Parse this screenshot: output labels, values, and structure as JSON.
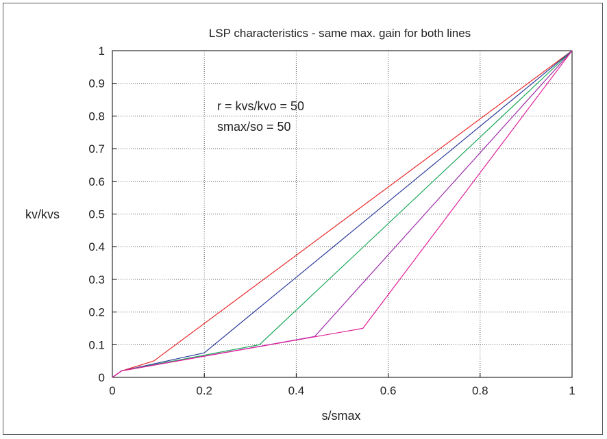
{
  "chart_data": {
    "type": "line",
    "title": "LSP characteristics - same max. gain for both lines",
    "xlabel": "s/smax",
    "ylabel": "kv/kvs",
    "xlim": [
      0,
      1
    ],
    "ylim": [
      0,
      1
    ],
    "grid": true,
    "xticks": [
      "0",
      "0.2",
      "0.4",
      "0.6",
      "0.8",
      "1"
    ],
    "yticks": [
      "0",
      "0.1",
      "0.2",
      "0.3",
      "0.4",
      "0.5",
      "0.6",
      "0.7",
      "0.8",
      "0.9",
      "1"
    ],
    "annotations": [
      "r = kvs/kvo = 50",
      "smax/so = 50"
    ],
    "series": [
      {
        "color": "#e8282a",
        "x": [
          0,
          0.02,
          0.09,
          1
        ],
        "y": [
          0,
          0.02,
          0.05,
          1
        ]
      },
      {
        "color": "#2a3a9a",
        "x": [
          0,
          0.02,
          0.2,
          1
        ],
        "y": [
          0,
          0.02,
          0.075,
          1
        ]
      },
      {
        "color": "#1aa85a",
        "x": [
          0,
          0.02,
          0.32,
          1
        ],
        "y": [
          0,
          0.02,
          0.1,
          1
        ]
      },
      {
        "color": "#9a2aa8",
        "x": [
          0,
          0.02,
          0.44,
          1
        ],
        "y": [
          0,
          0.02,
          0.125,
          1
        ]
      },
      {
        "color": "#e0209a",
        "x": [
          0,
          0.02,
          0.545,
          1
        ],
        "y": [
          0,
          0.02,
          0.15,
          1
        ]
      }
    ]
  }
}
